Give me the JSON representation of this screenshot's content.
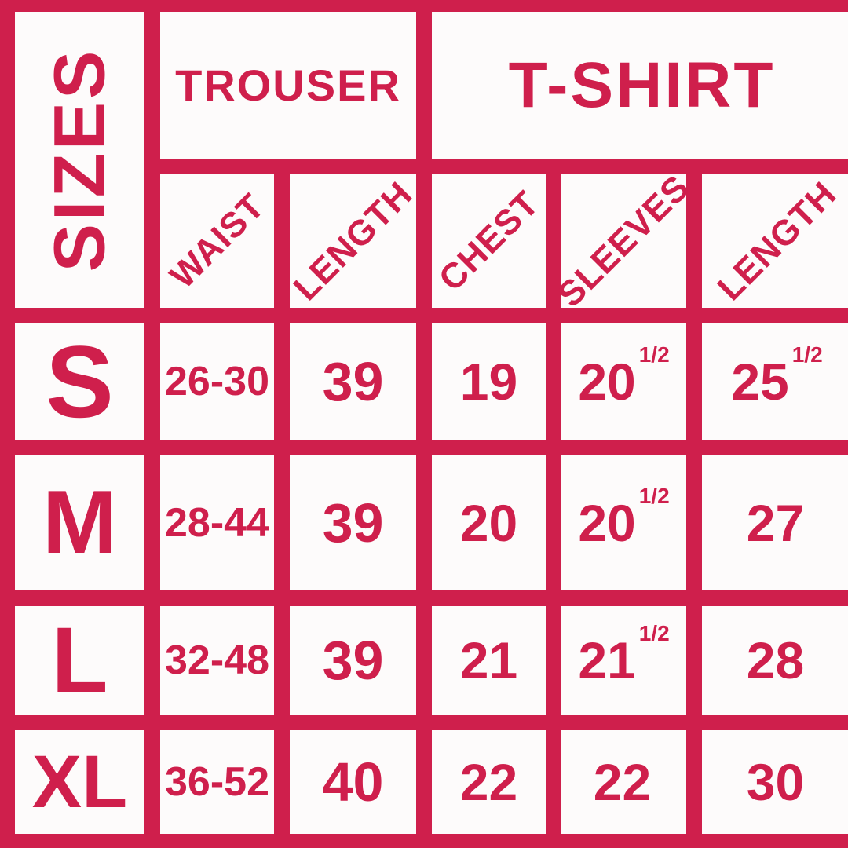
{
  "title": "SIZES",
  "colors": {
    "background": "#CF1F4C",
    "cell": "#FDFBFB",
    "text": "#CF1F4C"
  },
  "header": {
    "sizes_label": "SIZES",
    "trouser_label": "TROUSER",
    "tshirt_label": "T-SHIRT",
    "columns": {
      "waist": "WAIST",
      "trouser_length": "LENGTH",
      "chest": "CHEST",
      "sleeves": "SLEEVES",
      "tshirt_length": "LENGTH"
    }
  },
  "rows": [
    {
      "size": "S",
      "waist": "26-30",
      "trouser_length": "39",
      "chest": "19",
      "sleeves": "20",
      "sleeves_frac": "1/2",
      "tshirt_length": "25",
      "tshirt_length_frac": "1/2"
    },
    {
      "size": "M",
      "waist": "28-44",
      "trouser_length": "39",
      "chest": "20",
      "sleeves": "20",
      "sleeves_frac": "1/2",
      "tshirt_length": "27"
    },
    {
      "size": "L",
      "waist": "32-48",
      "trouser_length": "39",
      "chest": "21",
      "sleeves": "21",
      "sleeves_frac": "1/2",
      "tshirt_length": "28"
    },
    {
      "size": "XL",
      "waist": "36-52",
      "trouser_length": "40",
      "chest": "22",
      "sleeves": "22",
      "tshirt_length": "30"
    }
  ],
  "chart_data": {
    "type": "table",
    "title": "SIZES",
    "column_groups": [
      {
        "label": "TROUSER",
        "columns": [
          "WAIST",
          "LENGTH"
        ]
      },
      {
        "label": "T-SHIRT",
        "columns": [
          "CHEST",
          "SLEEVES",
          "LENGTH"
        ]
      }
    ],
    "rows": [
      {
        "size": "S",
        "waist": "26-30",
        "trouser_length": "39",
        "chest": "19",
        "sleeves": "20 1/2",
        "tshirt_length": "25 1/2"
      },
      {
        "size": "M",
        "waist": "28-44",
        "trouser_length": "39",
        "chest": "20",
        "sleeves": "20 1/2",
        "tshirt_length": "27"
      },
      {
        "size": "L",
        "waist": "32-48",
        "trouser_length": "39",
        "chest": "21",
        "sleeves": "21 1/2",
        "tshirt_length": "28"
      },
      {
        "size": "XL",
        "waist": "36-52",
        "trouser_length": "40",
        "chest": "22",
        "sleeves": "22",
        "tshirt_length": "30"
      }
    ]
  }
}
